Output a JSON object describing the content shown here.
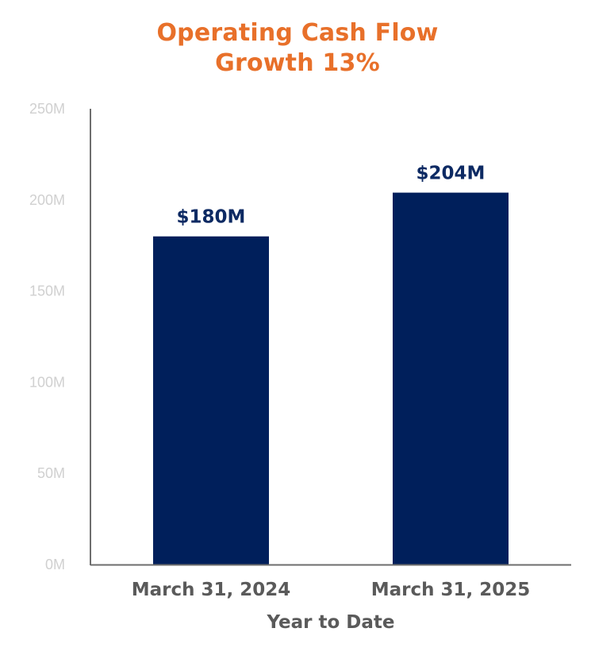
{
  "chart_data": {
    "type": "bar",
    "title": "Operating Cash Flow",
    "subtitle": "Growth 13%",
    "categories": [
      "March 31, 2024",
      "March 31, 2025"
    ],
    "values": [
      180,
      204
    ],
    "data_labels": [
      "$180M",
      "$204M"
    ],
    "xlabel": "Year to Date",
    "ylabel": "",
    "ylim": [
      0,
      250
    ],
    "yticks": [
      0,
      50,
      100,
      150,
      200,
      250
    ],
    "ytick_labels": [
      "0M",
      "50M",
      "100M",
      "150M",
      "200M",
      "250M"
    ],
    "grid": false,
    "legend": "none"
  },
  "colors": {
    "title": "#e8702a",
    "bar": "#001f5b",
    "data_label": "#0d2a63",
    "category_label": "#5a5a5a",
    "axis_title": "#5a5a5a",
    "tick_label": "#d0d0d0",
    "axis_line": "#6e6e6e"
  }
}
